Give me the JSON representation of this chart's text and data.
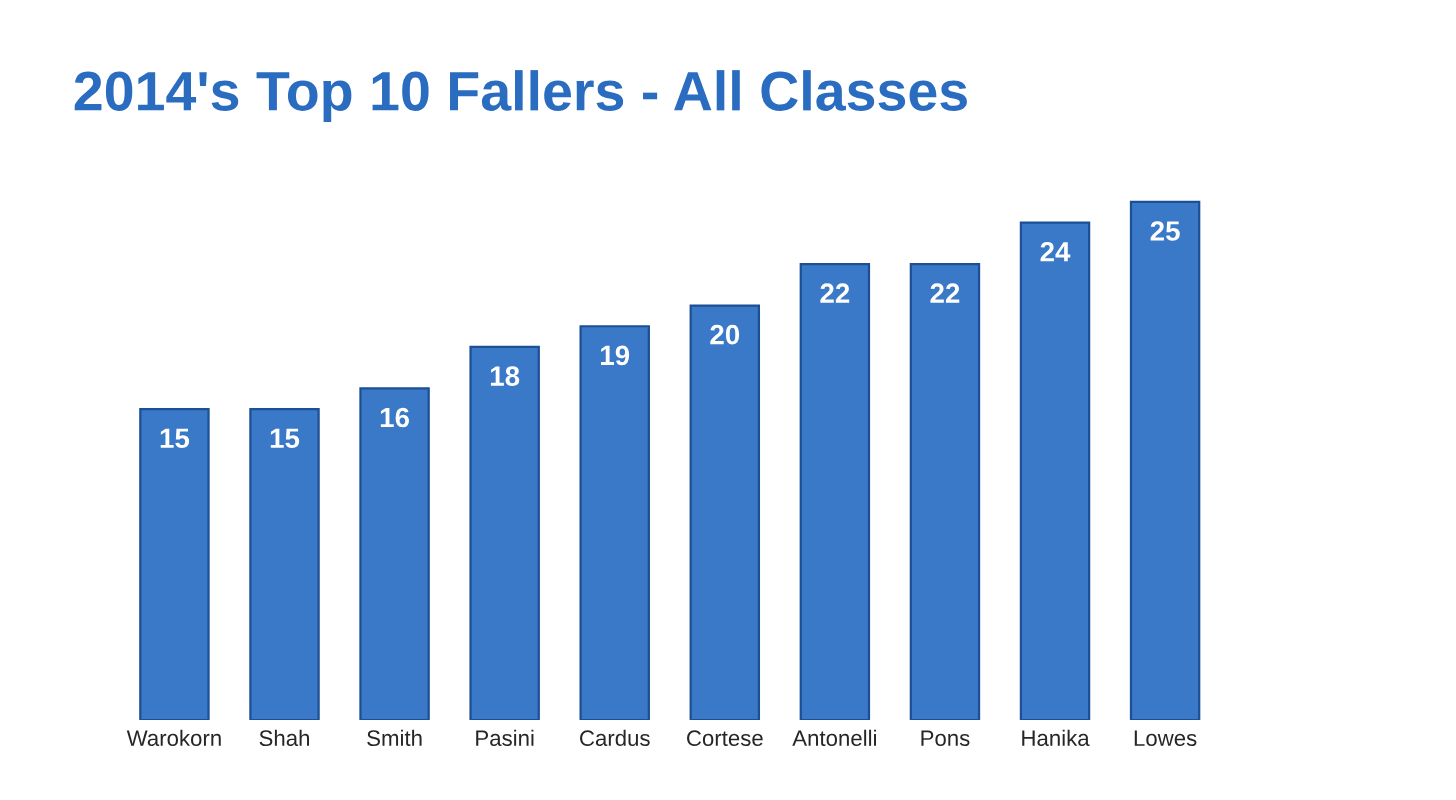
{
  "chart_data": {
    "type": "bar",
    "title": "2014's Top 10 Fallers - All Classes",
    "categories": [
      "Warokorn",
      "Shah",
      "Smith",
      "Pasini",
      "Cardus",
      "Cortese",
      "Antonelli",
      "Pons",
      "Hanika",
      "Lowes"
    ],
    "values": [
      15,
      15,
      16,
      18,
      19,
      20,
      22,
      22,
      24,
      25
    ],
    "color": "#3a78c8",
    "data_labels": true,
    "grid": false
  }
}
